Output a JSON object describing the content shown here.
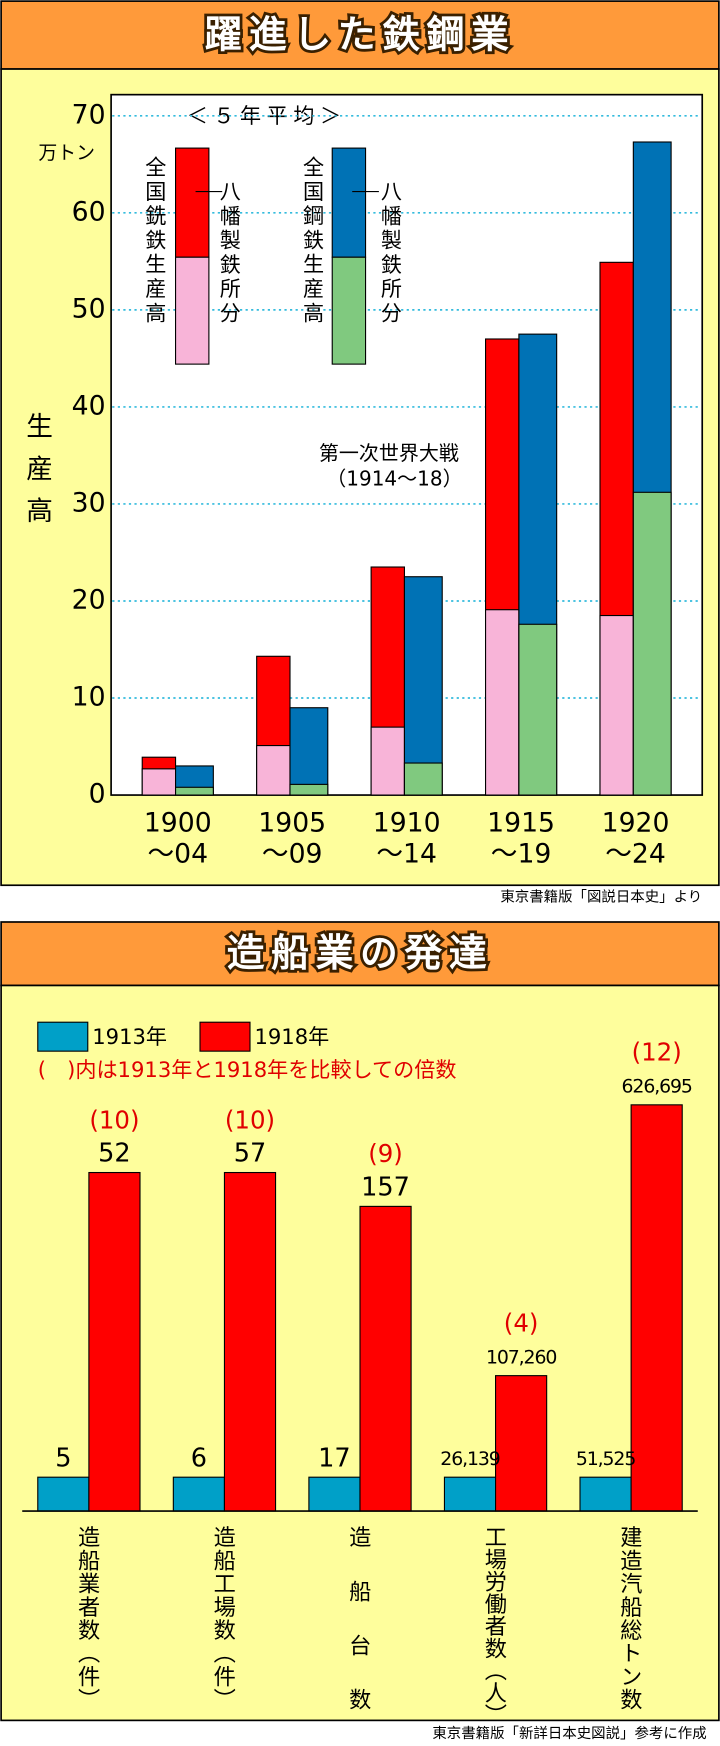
{
  "chart_data": [
    {
      "type": "bar",
      "title": "躍進した鉄鋼業",
      "subtitle": "＜５年平均＞",
      "ylabel": "生産高",
      "yunit": "万トン",
      "categories": [
        [
          "1900",
          "〜04"
        ],
        [
          "1905",
          "〜09"
        ],
        [
          "1910",
          "〜14"
        ],
        [
          "1915",
          "〜19"
        ],
        [
          "1920",
          "〜24"
        ]
      ],
      "series": [
        {
          "name": "全国銑鉄生産高",
          "color": "#ff0000",
          "values": [
            3.9,
            14.3,
            23.5,
            47.0,
            54.9
          ]
        },
        {
          "name": "八幡製鉄所分",
          "color": "#f8b4d8",
          "values": [
            2.7,
            5.1,
            7.0,
            19.1,
            18.5
          ]
        },
        {
          "name": "全国鋼鉄生産高",
          "color": "#0072b5",
          "values": [
            3.0,
            9.0,
            22.5,
            47.5,
            67.3
          ]
        },
        {
          "name": "八幡製鉄所分",
          "color": "#80c97f",
          "values": [
            0.8,
            1.1,
            3.3,
            17.6,
            31.2
          ]
        }
      ],
      "ylim": [
        0,
        70
      ],
      "yticks": [
        0,
        10,
        20,
        30,
        40,
        50,
        60,
        70
      ],
      "grid": true,
      "annotation": [
        "第一次世界大戦",
        "（1914〜18）"
      ],
      "source": "東京書籍版「図説日本史」より"
    },
    {
      "type": "grouped-bar",
      "title": "造船業の発達",
      "note": "(　)内は1913年と1918年を比較しての倍数",
      "categories": [
        "造船業者数（件）",
        "造船工場数（件）",
        "造船台数",
        "工場労働者数（人）",
        "建造汽船総トン数"
      ],
      "series": [
        {
          "name": "1913年",
          "color": "#00a0c8",
          "values": [
            5,
            6,
            17,
            26139,
            51525
          ],
          "value_labels": [
            "5",
            "6",
            "17",
            "26,139",
            "51,525"
          ]
        },
        {
          "name": "1918年",
          "color": "#ff0000",
          "values": [
            52,
            57,
            157,
            107260,
            626695
          ],
          "value_labels": [
            "52",
            "57",
            "157",
            "107,260",
            "626,695"
          ]
        }
      ],
      "multipliers": {
        "color": "#e00000",
        "values": [
          10,
          10,
          9,
          4,
          12
        ],
        "value_labels": [
          "(10)",
          "(10)",
          "(9)",
          "(4)",
          "(12)"
        ]
      },
      "source": "東京書籍版「新詳日本史図説」参考に作成"
    }
  ]
}
